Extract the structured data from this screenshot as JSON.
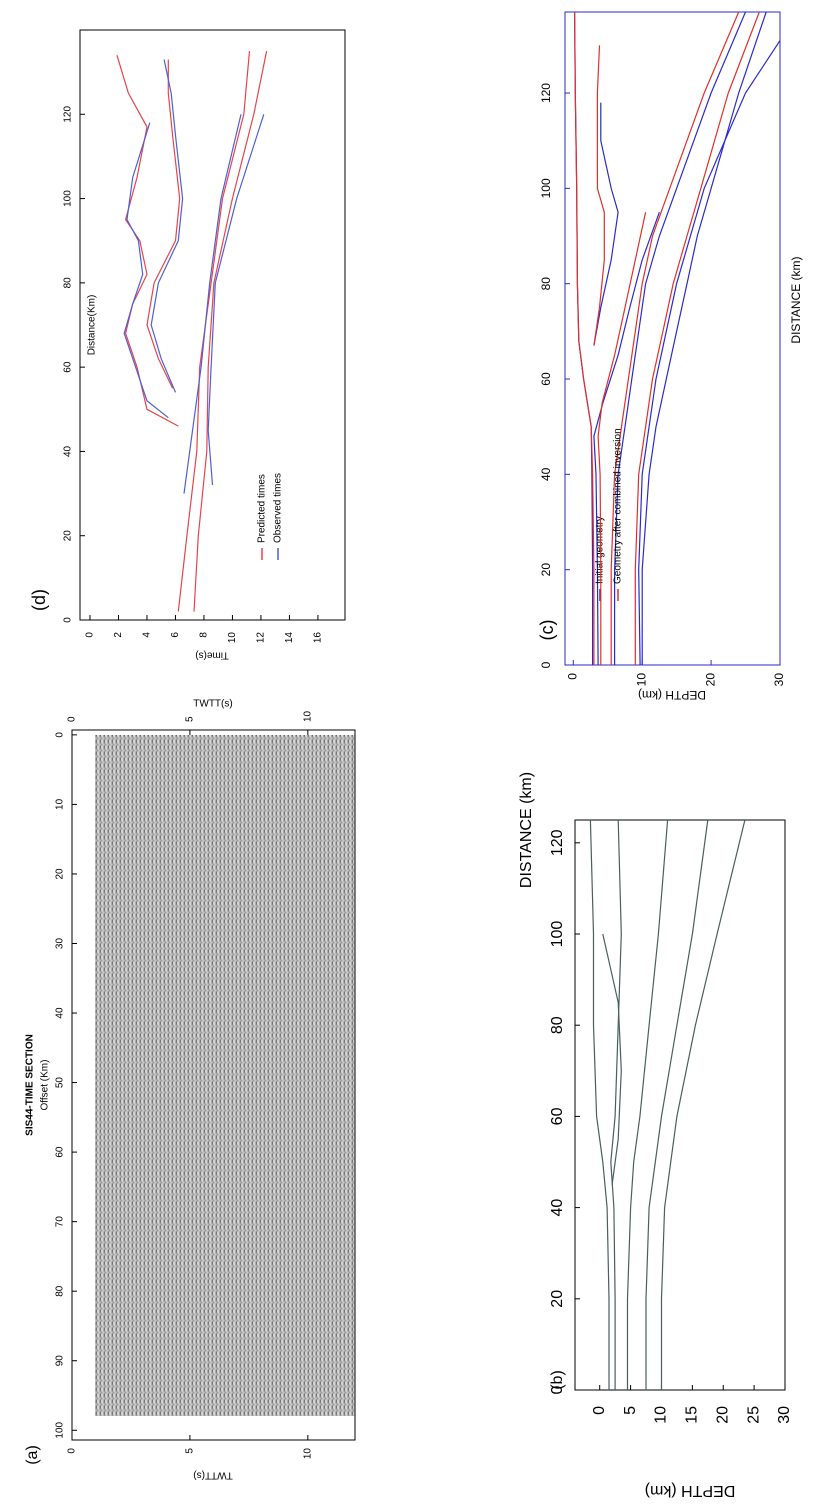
{
  "chart_data": [
    {
      "type": "image",
      "panel_label": "(a)",
      "title": "SIS44-TIME SECTION",
      "xlabel": "Offset (Km)",
      "ylabel": "TWTT(s)",
      "y2label": "TWTT(s)",
      "xlim": [
        101.4,
        -0.7
      ],
      "xticks": [
        100,
        90,
        80,
        70,
        60,
        50,
        40,
        30,
        20,
        10,
        0
      ],
      "ylim": [
        0,
        12
      ],
      "yticks": [
        0,
        5,
        10
      ],
      "y2lim": [
        0,
        12
      ],
      "y2ticks": [
        0,
        5,
        10
      ]
    },
    {
      "type": "line",
      "panel_label": "(b)",
      "xlabel": "DISTANCE (km)",
      "ylabel": "DEPTH (km)",
      "xlim": [
        0,
        125
      ],
      "xticks": [
        0,
        20,
        40,
        60,
        80,
        100,
        120
      ],
      "ylim": [
        -4,
        30
      ],
      "yticks": [
        0,
        5,
        10,
        15,
        20,
        25,
        30
      ],
      "series": [
        {
          "color": "#4a5e5e",
          "lines": [
            {
              "x": [
                0,
                20,
                40,
                50,
                60,
                80,
                100,
                125
              ],
              "values": [
                1.5,
                1.5,
                1.2,
                0.5,
                -0.5,
                -1,
                -1,
                -1.5
              ]
            },
            {
              "x": [
                0,
                20,
                40,
                50,
                60,
                80,
                100,
                125
              ],
              "values": [
                2.5,
                2.5,
                2.3,
                1.8,
                2.5,
                3,
                3.5,
                3
              ]
            },
            {
              "x": [
                45,
                55,
                70,
                85,
                100
              ],
              "values": [
                2,
                3,
                3.5,
                3,
                0.5
              ]
            },
            {
              "x": [
                0,
                20,
                40,
                50,
                60,
                80,
                100,
                125
              ],
              "values": [
                4.5,
                4.5,
                5,
                5.5,
                6.5,
                8,
                9.5,
                11
              ]
            },
            {
              "x": [
                0,
                20,
                40,
                60,
                80,
                100,
                125
              ],
              "values": [
                7.5,
                7.5,
                8,
                10,
                12.5,
                15,
                17.5
              ]
            },
            {
              "x": [
                0,
                20,
                40,
                60,
                80,
                100,
                125
              ],
              "values": [
                10,
                10,
                10.5,
                12.5,
                15.5,
                19,
                23.5
              ]
            }
          ]
        }
      ]
    },
    {
      "type": "line",
      "panel_label": "(c)",
      "xlabel": "DISTANCE (km)",
      "ylabel": "DEPTH (km)",
      "xlim": [
        0,
        137
      ],
      "xticks": [
        0,
        20,
        40,
        60,
        80,
        100,
        120
      ],
      "ylim": [
        -1.2,
        30
      ],
      "yticks": [
        0,
        10,
        20,
        30
      ],
      "series": [
        {
          "name": "Initial geometry",
          "color": "#2a2acc",
          "lines": [
            {
              "x": [
                0,
                20,
                40,
                50,
                60,
                68,
                80,
                100,
                120,
                137
              ],
              "values": [
                2.8,
                2.8,
                2.7,
                2.6,
                1.5,
                0.8,
                0.6,
                0.5,
                0.3,
                0.2
              ]
            },
            {
              "x": [
                0,
                20,
                40,
                48,
                55,
                65,
                75,
                85,
                95
              ],
              "values": [
                3.6,
                3.5,
                3.3,
                3,
                4.3,
                6.5,
                8.2,
                10,
                12.5
              ]
            },
            {
              "x": [
                67,
                75,
                85,
                95,
                100,
                110,
                118
              ],
              "values": [
                3,
                4,
                5.5,
                6.5,
                5.5,
                4,
                4
              ]
            },
            {
              "x": [
                0,
                20,
                40,
                50,
                60,
                70,
                80,
                90,
                100,
                120,
                137
              ],
              "values": [
                6,
                6,
                6.5,
                7.5,
                8.5,
                9.5,
                10.5,
                12.5,
                15,
                20,
                25
              ]
            },
            {
              "x": [
                0,
                20,
                40,
                50,
                60,
                70,
                80,
                90,
                100,
                120,
                137
              ],
              "values": [
                10,
                10,
                11,
                12,
                13.5,
                15,
                16.5,
                18,
                20,
                24,
                28
              ]
            },
            {
              "x": [
                0,
                20,
                40,
                60,
                80,
                100,
                120,
                131
              ],
              "values": [
                9.7,
                9.5,
                10,
                12,
                15,
                19,
                25,
                30
              ]
            }
          ]
        },
        {
          "name": "Geometry after combined inversion",
          "color": "#e0302a",
          "lines": [
            {
              "x": [
                0,
                20,
                40,
                50,
                60,
                68,
                80,
                100,
                120,
                137
              ],
              "values": [
                3,
                3,
                2.8,
                2.6,
                1.5,
                0.8,
                0.6,
                0.5,
                0.3,
                0.2
              ]
            },
            {
              "x": [
                0,
                20,
                40,
                48,
                55,
                65,
                75,
                85,
                95
              ],
              "values": [
                4,
                4,
                3.9,
                3.6,
                4.2,
                6,
                7.5,
                9,
                10.5
              ]
            },
            {
              "x": [
                67,
                75,
                85,
                95,
                100,
                110,
                120,
                130
              ],
              "values": [
                3,
                3.8,
                4.5,
                4.5,
                3.5,
                3.5,
                3.5,
                3.8
              ]
            },
            {
              "x": [
                0,
                20,
                40,
                50,
                60,
                70,
                80,
                90,
                100,
                120,
                137
              ],
              "values": [
                5.5,
                5.5,
                6,
                7,
                8,
                9,
                10,
                11.5,
                14,
                19,
                24
              ]
            },
            {
              "x": [
                0,
                20,
                40,
                50,
                60,
                70,
                80,
                90,
                100,
                120,
                137
              ],
              "values": [
                9,
                9,
                9.5,
                10.5,
                11.5,
                13,
                14.5,
                16.5,
                18.5,
                22.5,
                27
              ]
            }
          ]
        }
      ]
    },
    {
      "type": "line",
      "panel_label": "(d)",
      "xlabel": "Distance(Km)",
      "ylabel": "Time(s)",
      "xlim": [
        0,
        140
      ],
      "xticks": [
        0,
        20,
        40,
        60,
        80,
        100,
        120
      ],
      "ylim": [
        -0.7,
        17.9
      ],
      "yticks": [
        0,
        2,
        4,
        6,
        8,
        10,
        12,
        14,
        16
      ],
      "series": [
        {
          "name": "Predicted times",
          "color": "#e8434a",
          "lines": [
            {
              "x": [
                2,
                20,
                40,
                60,
                80,
                100,
                120,
                135
              ],
              "values": [
                6.2,
                6.8,
                7.5,
                7.7,
                8.5,
                9.3,
                10.8,
                11.2
              ]
            },
            {
              "x": [
                2,
                20,
                40,
                60,
                80,
                100,
                120,
                135
              ],
              "values": [
                7.3,
                7.6,
                8.2,
                8.3,
                8.7,
                10,
                11.5,
                12.4
              ]
            },
            {
              "x": [
                46,
                50,
                60,
                68,
                75,
                82,
                90,
                95,
                105,
                117,
                125,
                134
              ],
              "values": [
                6.2,
                4,
                3.3,
                2.5,
                3,
                4,
                3.5,
                2.5,
                3.3,
                4,
                2.7,
                1.9
              ]
            },
            {
              "x": [
                55,
                62,
                70,
                80,
                90,
                100,
                115,
                125,
                133
              ],
              "values": [
                5.8,
                4.8,
                4,
                4.5,
                6,
                6.3,
                5.8,
                5.5,
                5.5
              ]
            }
          ]
        },
        {
          "name": "Observed times",
          "color": "#4d5fd6",
          "lines": [
            {
              "x": [
                30,
                40,
                60,
                80,
                100,
                120
              ],
              "values": [
                6.6,
                7,
                7.8,
                8.4,
                9.2,
                10.6
              ]
            },
            {
              "x": [
                32,
                45,
                60,
                80,
                100,
                120
              ],
              "values": [
                8.6,
                8.3,
                8.5,
                8.8,
                10.3,
                12.2
              ]
            },
            {
              "x": [
                48,
                52,
                60,
                68,
                75,
                82,
                90,
                95,
                105,
                118
              ],
              "values": [
                5.5,
                4,
                3.2,
                2.4,
                3,
                3.7,
                3.4,
                2.6,
                3,
                4.2
              ]
            },
            {
              "x": [
                54,
                62,
                70,
                80,
                90,
                100,
                115,
                125,
                133
              ],
              "values": [
                6,
                5,
                4.3,
                4.8,
                6.2,
                6.5,
                6,
                5.7,
                5.2
              ]
            }
          ]
        }
      ]
    }
  ]
}
